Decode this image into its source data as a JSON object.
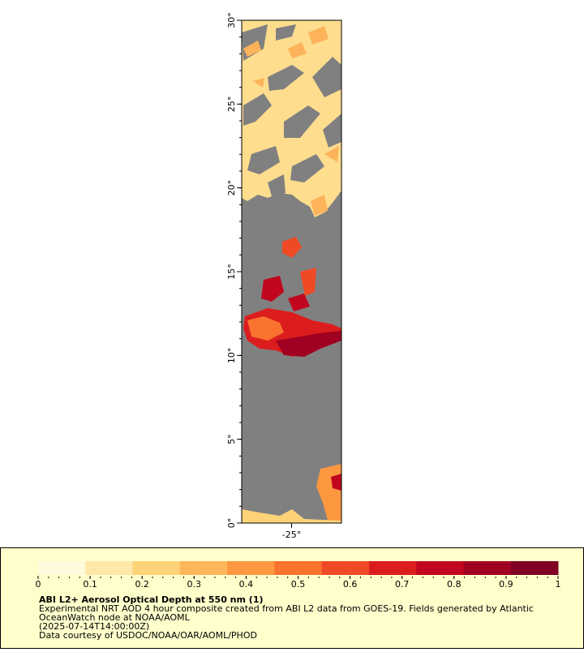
{
  "map": {
    "lat_range": [
      0,
      30
    ],
    "lon_range": [
      -28,
      -22
    ],
    "lat_ticks": [
      {
        "value": 0,
        "label": "0°"
      },
      {
        "value": 5,
        "label": "5°"
      },
      {
        "value": 10,
        "label": "10°"
      },
      {
        "value": 15,
        "label": "15°"
      },
      {
        "value": 20,
        "label": "20°"
      },
      {
        "value": 25,
        "label": "25°"
      },
      {
        "value": 30,
        "label": "30°"
      }
    ],
    "lon_ticks": [
      {
        "value": -25,
        "label": "-25°"
      }
    ]
  },
  "colorbar": {
    "range": [
      0,
      1
    ],
    "ticks": [
      0,
      0.1,
      0.2,
      0.3,
      0.4,
      0.5,
      0.6,
      0.7,
      0.8,
      0.9,
      1
    ],
    "colors": [
      "#fffadc",
      "#fee8a8",
      "#fed378",
      "#fdb75a",
      "#fd9841",
      "#f9732f",
      "#ef4a25",
      "#dc1d1e",
      "#c2061f",
      "#a00022",
      "#800026"
    ]
  },
  "caption": {
    "title": "ABI L2+ Aerosol Optical Depth at 550 nm (1)",
    "description_lines": [
      "Experimental NRT AOD 4 hour composite created from ABI L2 data from GOES-19. Fields generated by Atlantic",
      "OceanWatch node at NOAA/AOML"
    ],
    "time": "(2025-07-14T14:00:00Z)",
    "credit": "Data courtesy of USDOC/NOAA/OAR/AOML/PHOD"
  }
}
